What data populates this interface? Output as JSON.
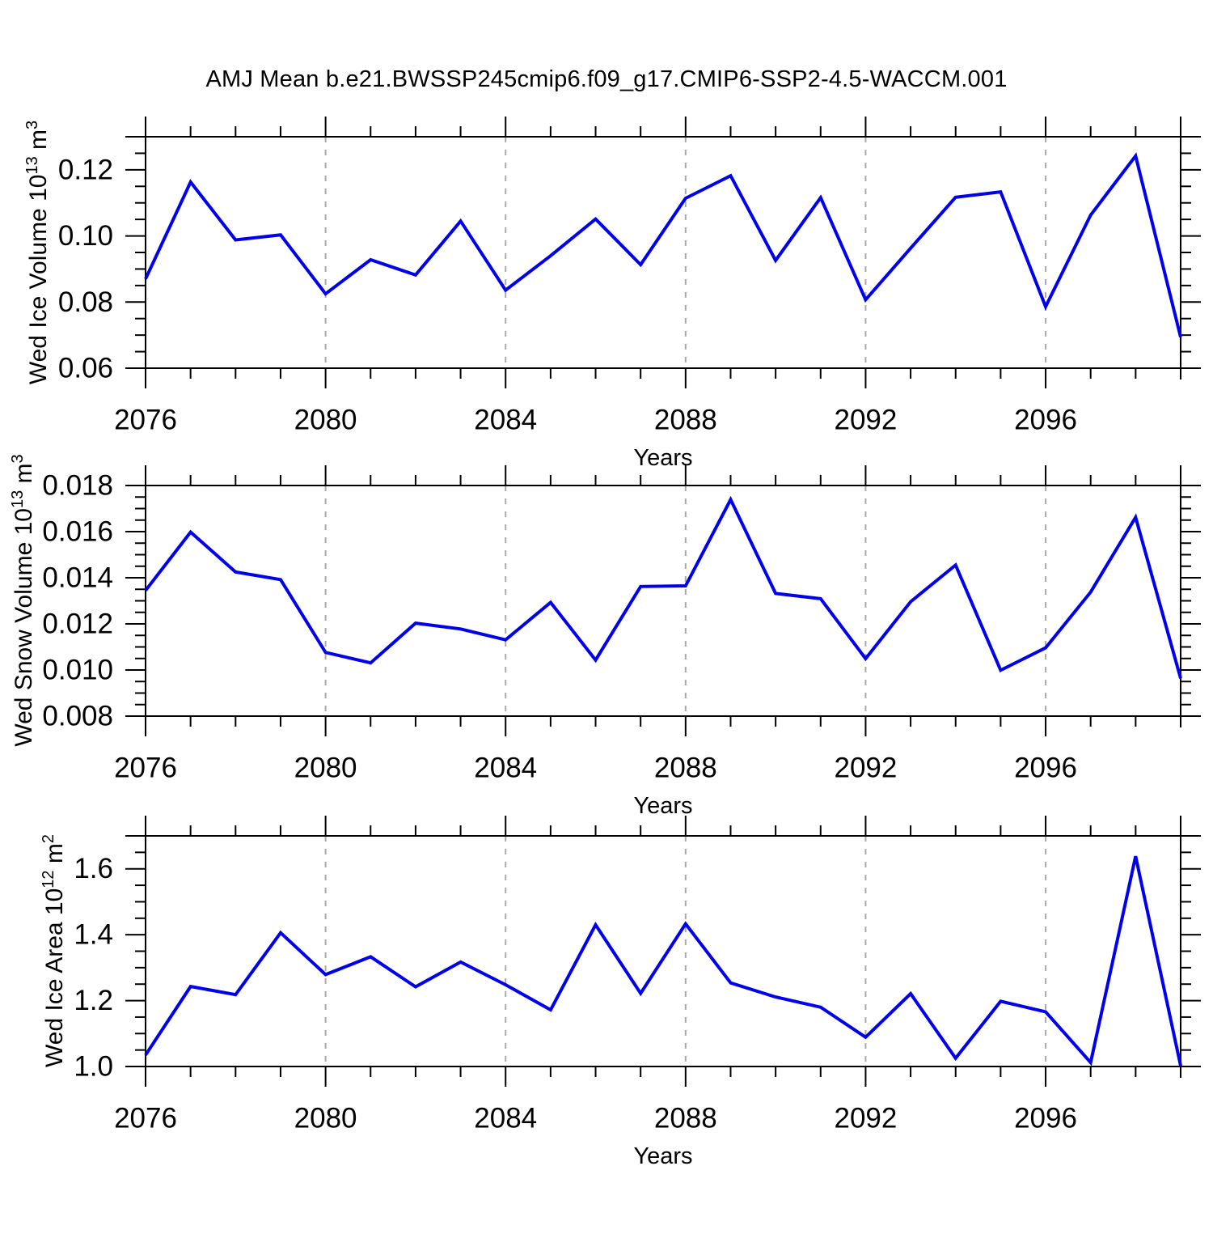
{
  "title": "AMJ Mean b.e21.BWSSP245cmip6.f09_g17.CMIP6-SSP2-4.5-WACCM.001",
  "colors": {
    "line": "#0000ee",
    "grid": "#aaaaaa",
    "axis": "#000000",
    "text": "#000000",
    "background": "#ffffff"
  },
  "x_axis": {
    "label": "Years",
    "range": [
      2076,
      2099
    ],
    "major_ticks": [
      2076,
      2080,
      2084,
      2088,
      2092,
      2096
    ],
    "major_tick_labels": [
      "2076",
      "2080",
      "2084",
      "2088",
      "2092",
      "2096"
    ],
    "minor_step": 1,
    "grid_years": [
      2080,
      2084,
      2088,
      2092,
      2096
    ]
  },
  "chart_data": [
    {
      "type": "line",
      "panel": "ice-volume",
      "ylabel": {
        "prefix": "Wed Ice Volume 10",
        "sup": "13",
        "mid": " m",
        "sup2": "3"
      },
      "xlabel": "Years",
      "ylim": [
        0.06,
        0.13
      ],
      "y_major_ticks": [
        0.06,
        0.08,
        0.1,
        0.12
      ],
      "y_tick_labels": [
        "0.06",
        "0.08",
        "0.10",
        "0.12"
      ],
      "y_minor_step": 0.005,
      "grid": "vertical-dashed",
      "x": [
        2076,
        2077,
        2078,
        2079,
        2080,
        2081,
        2082,
        2083,
        2084,
        2085,
        2086,
        2087,
        2088,
        2089,
        2090,
        2091,
        2092,
        2093,
        2094,
        2095,
        2096,
        2097,
        2098,
        2099
      ],
      "values": [
        0.087,
        0.1163,
        0.0988,
        0.1003,
        0.0825,
        0.0928,
        0.0882,
        0.1045,
        0.0836,
        0.094,
        0.1051,
        0.0913,
        0.1114,
        0.1182,
        0.0926,
        0.1116,
        0.0807,
        0.0963,
        0.1117,
        0.1133,
        0.0786,
        0.1063,
        0.1242,
        0.0694
      ]
    },
    {
      "type": "line",
      "panel": "snow-volume",
      "ylabel": {
        "prefix": "Wed Snow Volume 10",
        "sup": "13",
        "mid": " m",
        "sup2": "3"
      },
      "xlabel": "Years",
      "ylim": [
        0.008,
        0.018
      ],
      "y_major_ticks": [
        0.008,
        0.01,
        0.012,
        0.014,
        0.016,
        0.018
      ],
      "y_tick_labels": [
        "0.008",
        "0.010",
        "0.012",
        "0.014",
        "0.016",
        "0.018"
      ],
      "y_minor_step": 0.0005,
      "grid": "vertical-dashed",
      "x": [
        2076,
        2077,
        2078,
        2079,
        2080,
        2081,
        2082,
        2083,
        2084,
        2085,
        2086,
        2087,
        2088,
        2089,
        2090,
        2091,
        2092,
        2093,
        2094,
        2095,
        2096,
        2097,
        2098,
        2099
      ],
      "values": [
        0.01345,
        0.01598,
        0.01425,
        0.01392,
        0.01076,
        0.01031,
        0.01203,
        0.01178,
        0.01131,
        0.01293,
        0.01043,
        0.01362,
        0.01365,
        0.01739,
        0.01332,
        0.01309,
        0.01049,
        0.01296,
        0.01455,
        0.00999,
        0.01096,
        0.01338,
        0.01662,
        0.00964
      ]
    },
    {
      "type": "line",
      "panel": "ice-area",
      "ylabel": {
        "prefix": "Wed Ice Area 10",
        "sup": "12",
        "mid": " m",
        "sup2": "2"
      },
      "xlabel": "Years",
      "ylim": [
        1.0,
        1.7
      ],
      "y_major_ticks": [
        1.0,
        1.2,
        1.4,
        1.6
      ],
      "y_tick_labels": [
        "1.0",
        "1.2",
        "1.4",
        "1.6"
      ],
      "y_minor_step": 0.05,
      "grid": "vertical-dashed",
      "x": [
        2076,
        2077,
        2078,
        2079,
        2080,
        2081,
        2082,
        2083,
        2084,
        2085,
        2086,
        2087,
        2088,
        2089,
        2090,
        2091,
        2092,
        2093,
        2094,
        2095,
        2096,
        2097,
        2098,
        2099
      ],
      "values": [
        1.035,
        1.243,
        1.218,
        1.406,
        1.279,
        1.333,
        1.242,
        1.317,
        1.248,
        1.172,
        1.43,
        1.222,
        1.433,
        1.254,
        1.211,
        1.18,
        1.089,
        1.221,
        1.025,
        1.198,
        1.166,
        1.012,
        1.638,
        1.002
      ]
    }
  ]
}
